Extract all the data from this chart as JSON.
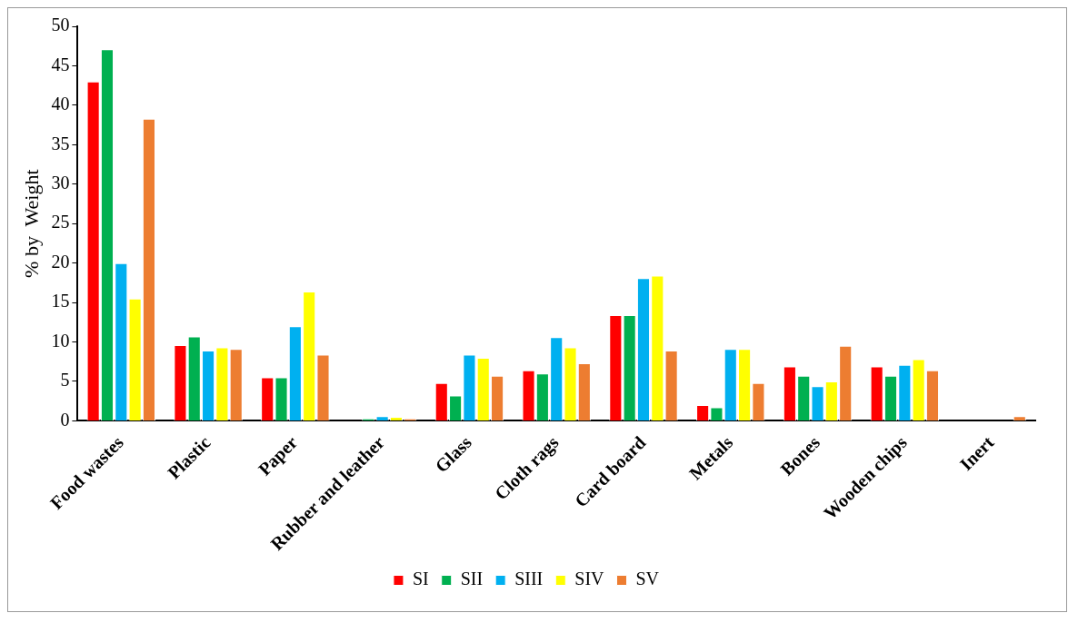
{
  "chart_data": {
    "type": "bar",
    "ylabel": "% by  Weight",
    "categories": [
      "Food wastes",
      "Plastic",
      "Paper",
      "Rubber and leather",
      "Glass",
      "Cloth rags",
      "Card board",
      "Metals",
      "Bones",
      "Wooden chips",
      "Inert"
    ],
    "series": [
      {
        "name": "SI",
        "color": "#ff0000",
        "values": [
          43,
          9.6,
          5.5,
          0,
          4.8,
          6.4,
          13.4,
          2,
          6.9,
          6.9,
          0
        ]
      },
      {
        "name": "SII",
        "color": "#00b050",
        "values": [
          47.1,
          10.7,
          5.5,
          0.3,
          3.2,
          6,
          13.4,
          1.7,
          5.7,
          5.7,
          0
        ]
      },
      {
        "name": "SIII",
        "color": "#00b0f0",
        "values": [
          20,
          8.9,
          12,
          0.6,
          8.4,
          10.6,
          18.1,
          9.1,
          4.4,
          7.1,
          0
        ]
      },
      {
        "name": "SIV",
        "color": "#ffff00",
        "values": [
          15.5,
          9.3,
          16.4,
          0.5,
          8,
          9.3,
          18.4,
          9.1,
          5,
          7.8,
          0
        ]
      },
      {
        "name": "SV",
        "color": "#ed7d31",
        "values": [
          38.3,
          9.1,
          8.4,
          0.3,
          5.7,
          7.3,
          8.9,
          4.8,
          9.5,
          6.4,
          0.6
        ]
      }
    ],
    "ylim": [
      0,
      50
    ],
    "yticks": [
      0,
      5,
      10,
      15,
      20,
      25,
      30,
      35,
      40,
      45,
      50
    ],
    "grid": false,
    "legend": "bottom"
  }
}
